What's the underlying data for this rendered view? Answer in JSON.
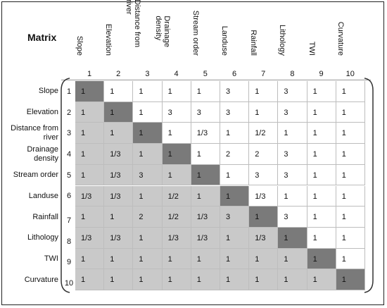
{
  "title": "Matrix",
  "criteria": [
    {
      "header": "Slope",
      "label": "Slope",
      "num": "1"
    },
    {
      "header": "Elevation",
      "label": "Elevation",
      "num": "2"
    },
    {
      "header": "Distance from\nriver",
      "label": "Distance from\nriver",
      "num": "3"
    },
    {
      "header": "Drainage\ndensity",
      "label": "Drainage\ndensity",
      "num": "4"
    },
    {
      "header": "Stream order",
      "label": "Stream order",
      "num": "5"
    },
    {
      "header": "Landuse",
      "label": "Landuse",
      "num": "6"
    },
    {
      "header": "Rainfall",
      "label": "Rainfall",
      "num": "7"
    },
    {
      "header": "Lithology",
      "label": "Lithology",
      "num": "8"
    },
    {
      "header": "TWI",
      "label": "TWI",
      "num": "9"
    },
    {
      "header": "Curvature",
      "label": "Curvature",
      "num": "10"
    }
  ],
  "matrix": [
    [
      "1",
      "1",
      "1",
      "1",
      "1",
      "3",
      "1",
      "3",
      "1",
      "1"
    ],
    [
      "1",
      "1",
      "1",
      "3",
      "3",
      "3",
      "1",
      "3",
      "1",
      "1"
    ],
    [
      "1",
      "1",
      "1",
      "1",
      "1/3",
      "1",
      "1/2",
      "1",
      "1",
      "1"
    ],
    [
      "1",
      "1/3",
      "1",
      "1",
      "1",
      "2",
      "2",
      "3",
      "1",
      "1"
    ],
    [
      "1",
      "1/3",
      "3",
      "1",
      "1",
      "1",
      "3",
      "3",
      "1",
      "1"
    ],
    [
      "1/3",
      "1/3",
      "1",
      "1/2",
      "1",
      "1",
      "1/3",
      "1",
      "1",
      "1"
    ],
    [
      "1",
      "1",
      "2",
      "1/2",
      "1/3",
      "3",
      "1",
      "3",
      "1",
      "1"
    ],
    [
      "1/3",
      "1/3",
      "1",
      "1/3",
      "1/3",
      "1",
      "1/3",
      "1",
      "1",
      "1"
    ],
    [
      "1",
      "1",
      "1",
      "1",
      "1",
      "1",
      "1",
      "1",
      "1",
      "1"
    ],
    [
      "1",
      "1",
      "1",
      "1",
      "1",
      "1",
      "1",
      "1",
      "1",
      "1"
    ]
  ]
}
